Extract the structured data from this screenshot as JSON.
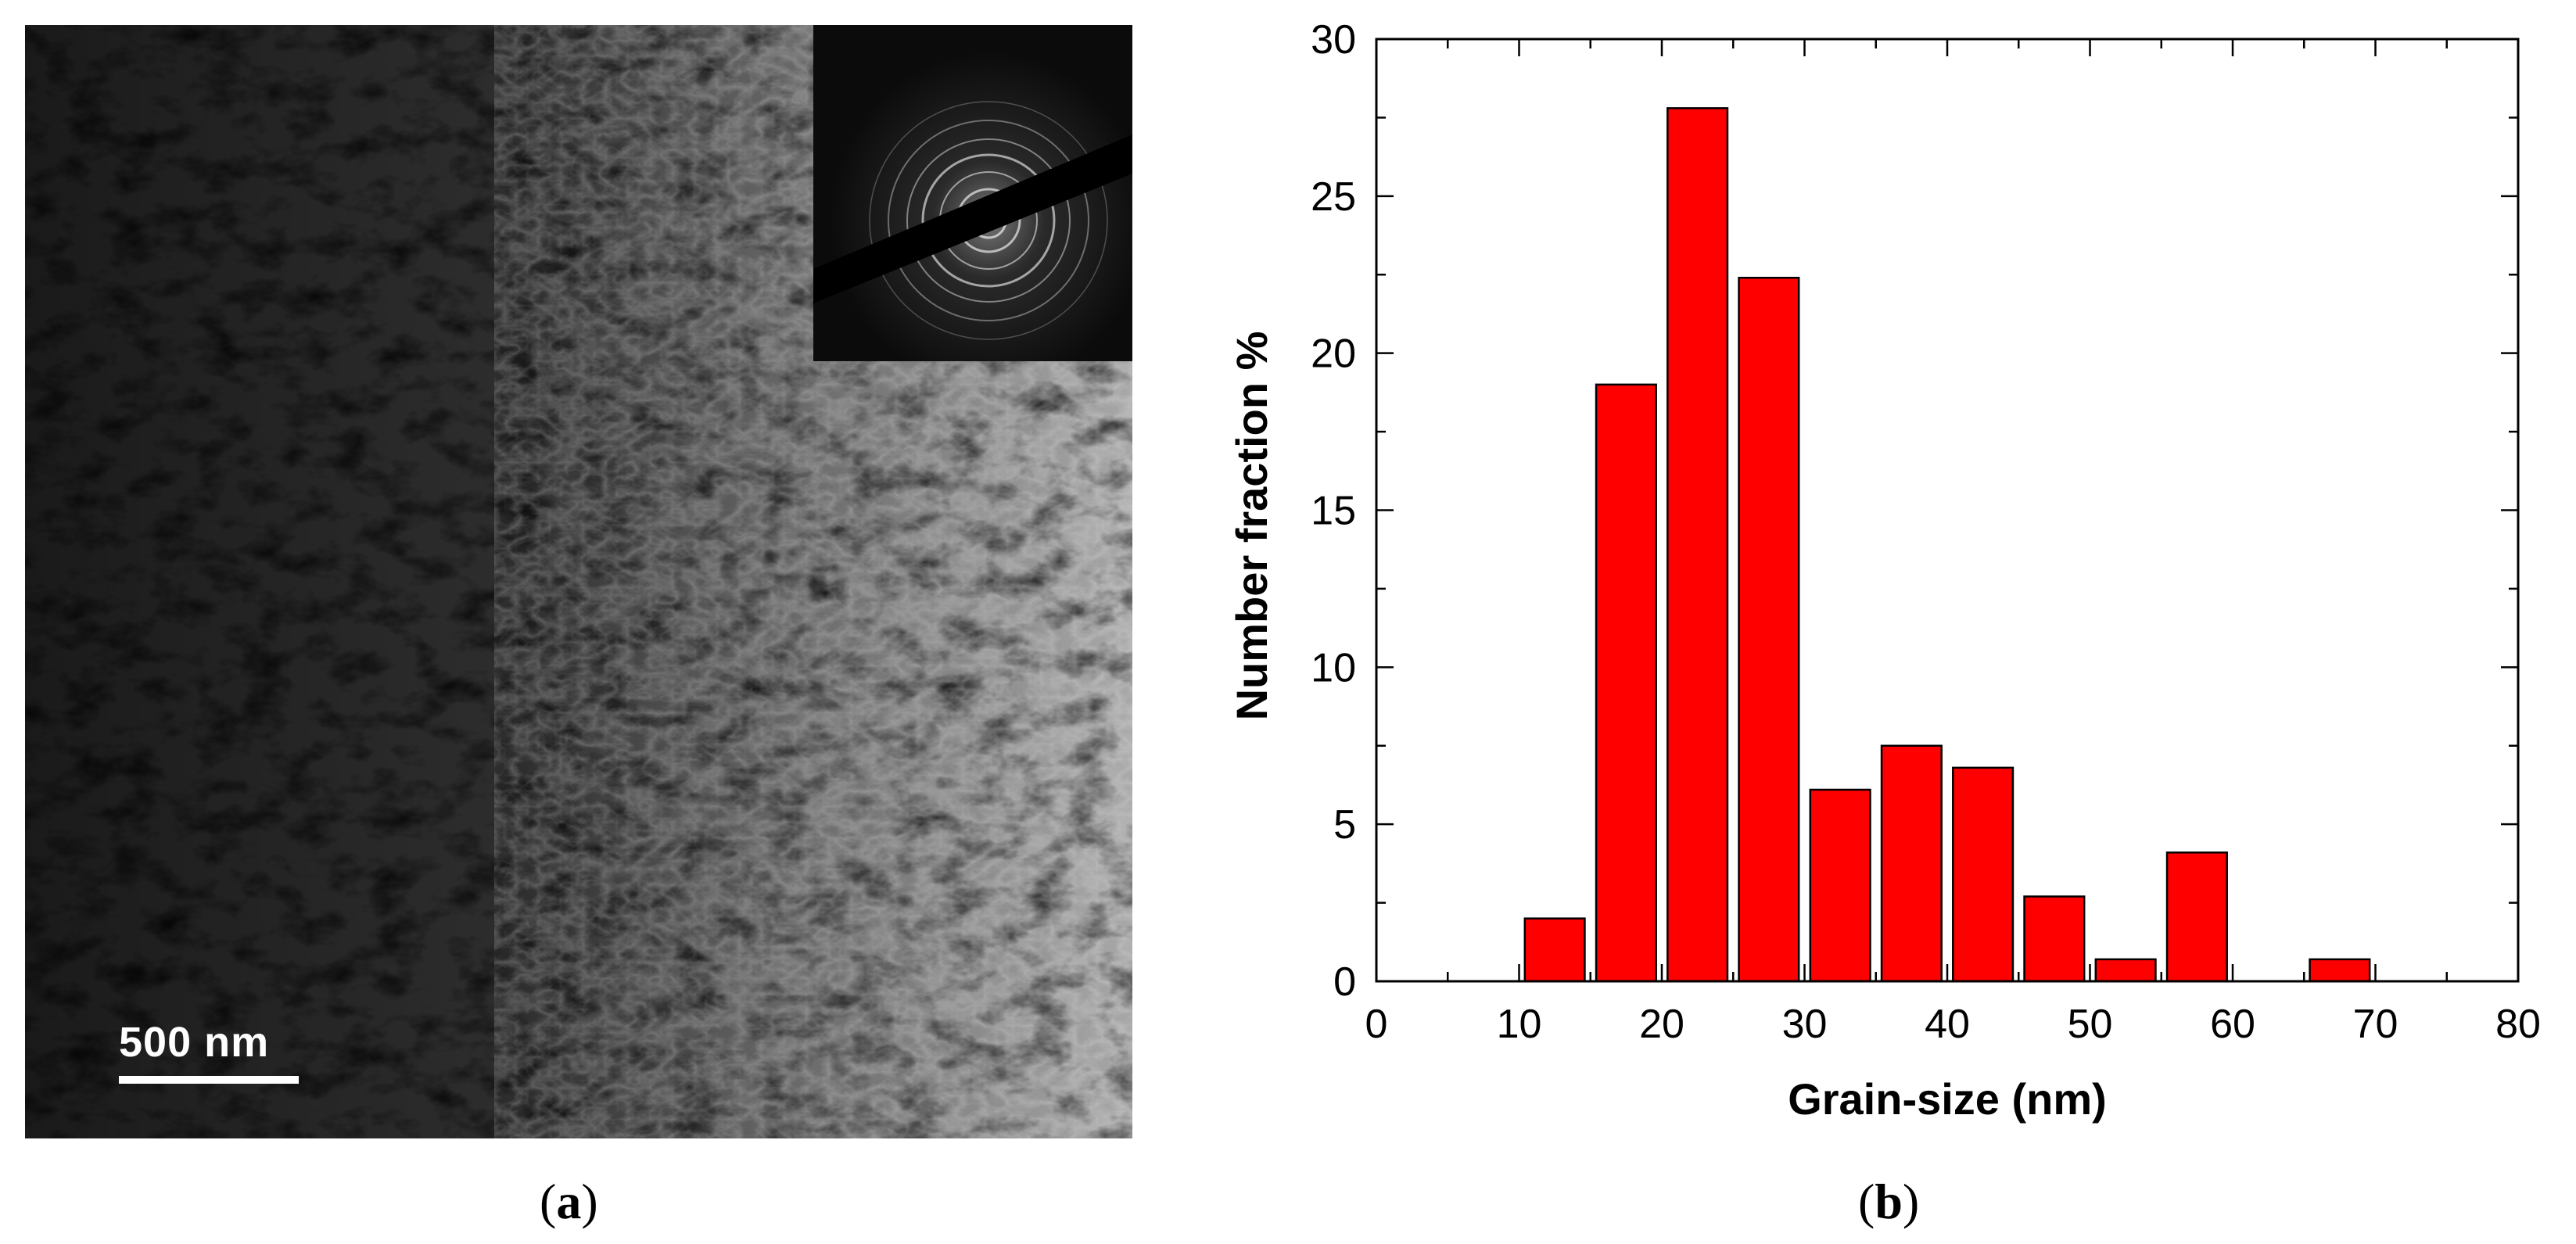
{
  "panel_a": {
    "scale_bar_label": "500 nm",
    "caption_open": "(",
    "caption_letter": "a",
    "caption_close": ")"
  },
  "panel_b": {
    "caption_open": "(",
    "caption_letter": "b",
    "caption_close": ")"
  },
  "chart_data": {
    "type": "bar",
    "x": [
      12.5,
      17.5,
      22.5,
      27.5,
      32.5,
      37.5,
      42.5,
      47.5,
      52.5,
      57.5,
      67.5
    ],
    "values": [
      2.0,
      19.0,
      27.8,
      22.4,
      6.1,
      7.5,
      6.8,
      2.7,
      0.7,
      4.1,
      0.7
    ],
    "bin_width": 5,
    "xlabel": "Grain-size (nm)",
    "ylabel": "Number fraction %",
    "xlim": [
      0,
      80
    ],
    "ylim": [
      0,
      30
    ],
    "xticks": [
      "0",
      "10",
      "20",
      "30",
      "40",
      "50",
      "60",
      "70",
      "80"
    ],
    "yticks": [
      "0",
      "5",
      "10",
      "15",
      "20",
      "25",
      "30"
    ],
    "bar_color": "#ff0000",
    "grid": false
  }
}
